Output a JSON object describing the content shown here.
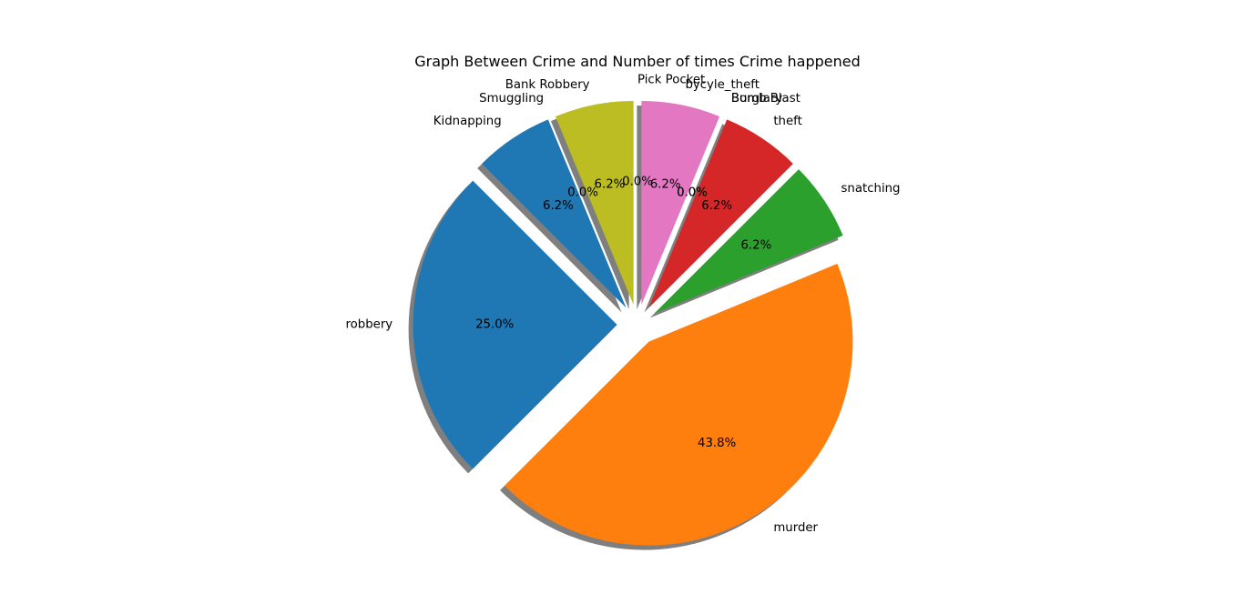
{
  "chart_data": {
    "type": "pie",
    "title": "Graph Between Crime and Number of times Crime happened",
    "start_angle_deg": 135,
    "counterclockwise": true,
    "shadow": true,
    "autopct_format": "%1.1f%%",
    "slices": [
      {
        "label": "robbery",
        "value": 4,
        "pct_label": "25.0%",
        "color": "#1f77b4",
        "explode": 0.1
      },
      {
        "label": "murder",
        "value": 7,
        "pct_label": "43.8%",
        "color": "#ff7f0e",
        "explode": 0.1
      },
      {
        "label": "snatching",
        "value": 1,
        "pct_label": "6.2%",
        "color": "#2ca02c",
        "explode": 0.1
      },
      {
        "label": "theft",
        "value": 1,
        "pct_label": "6.2%",
        "color": "#d62728",
        "explode": 0.1
      },
      {
        "label": "Bomb Blast",
        "value": 0,
        "pct_label": "0.0%",
        "color": "#9467bd",
        "explode": 0.1
      },
      {
        "label": "Burglary",
        "value": 0,
        "pct_label": "0.0%",
        "color": "#8c564b",
        "explode": 0.1
      },
      {
        "label": "bycyle_theft",
        "value": 1,
        "pct_label": "6.2%",
        "color": "#e377c2",
        "explode": 0.1
      },
      {
        "label": "Pick Pocket",
        "value": 0,
        "pct_label": "0.0%",
        "color": "#7f7f7f",
        "explode": 0.1
      },
      {
        "label": "Bank Robbery",
        "value": 1,
        "pct_label": "6.2%",
        "color": "#bcbd22",
        "explode": 0.1
      },
      {
        "label": "Smuggling",
        "value": 0,
        "pct_label": "0.0%",
        "color": "#17becf",
        "explode": 0.1
      },
      {
        "label": "Kidnapping",
        "value": 1,
        "pct_label": "6.2%",
        "color": "#1f77b4",
        "explode": 0.1
      }
    ]
  }
}
